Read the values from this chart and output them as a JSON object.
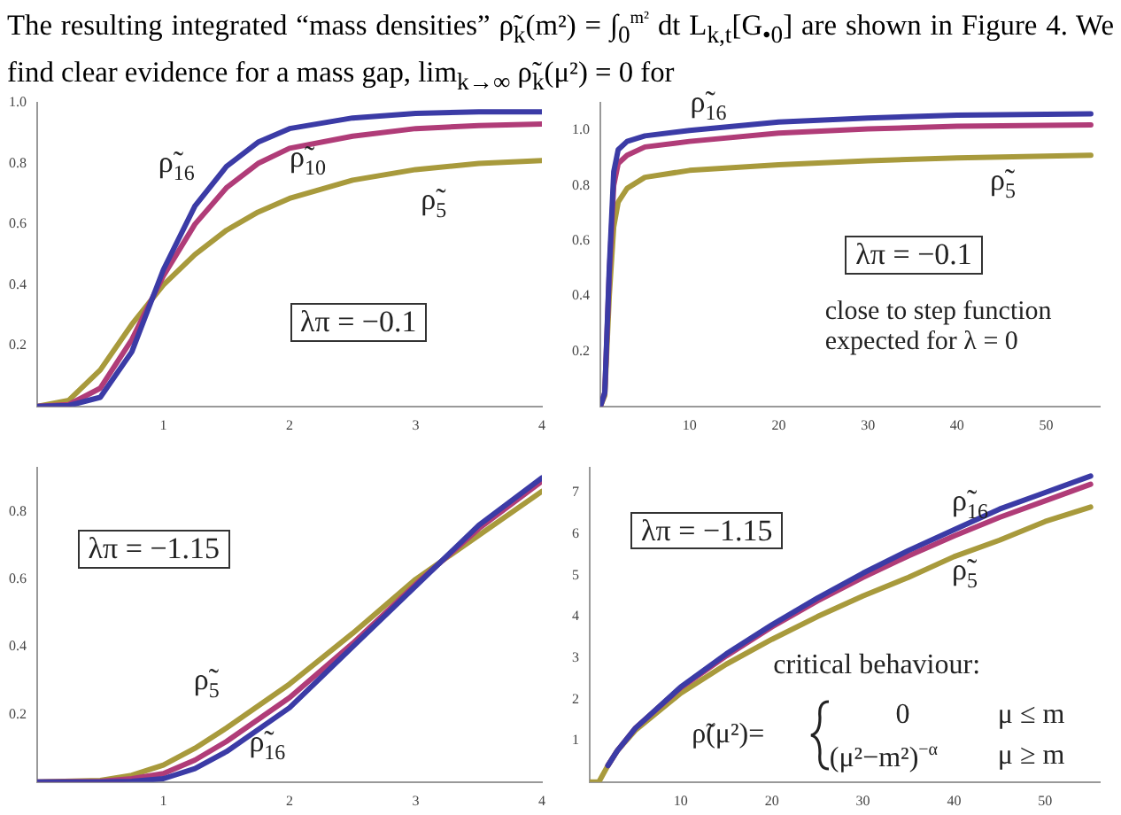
{
  "chart_data": [
    {
      "type": "line",
      "title": "The resulting integrated “mass densities” ρ̃$_{k}$(m²) = ∫$_{0}$$^{m²}$ dt L$_{k,t}$[G$_{•0}$] are shown in Figure 4.  We find clear evidence for a mass gap, lim$_{k→∞}$ ρ̃$_{k}$(μ²) = 0 for",
      "xlim": [
        0,
        4
      ],
      "ylim": [
        0,
        1
      ],
      "xticks": [
        1,
        2,
        3,
        4
      ],
      "yticks": [
        0.2,
        0.4,
        0.6,
        0.8,
        {
          "value": 1,
          "label": "1.0"
        }
      ],
      "grid": false,
      "marker": "none",
      "line_style": "solid",
      "annotations": [
        "λπ = −0.1"
      ],
      "x": [
        0,
        0.25,
        0.5,
        0.75,
        1,
        1.25,
        1.5,
        1.75,
        2,
        2.5,
        3,
        3.5,
        4
      ],
      "series": [
        {
          "name": "ρ̃$_{16}$",
          "color": "#3b3ba6",
          "values": [
            0,
            0.003,
            0.03,
            0.18,
            0.45,
            0.66,
            0.79,
            0.87,
            0.915,
            0.95,
            0.965,
            0.97,
            0.97
          ]
        },
        {
          "name": "ρ̃$_{10}$",
          "color": "#b03c78",
          "values": [
            0,
            0.006,
            0.06,
            0.22,
            0.43,
            0.6,
            0.72,
            0.8,
            0.85,
            0.89,
            0.915,
            0.925,
            0.93
          ]
        },
        {
          "name": "ρ̃$_{5}$",
          "color": "#a89a3c",
          "values": [
            0,
            0.02,
            0.12,
            0.27,
            0.4,
            0.5,
            0.58,
            0.64,
            0.685,
            0.745,
            0.78,
            0.8,
            0.81
          ]
        }
      ]
    },
    {
      "type": "line",
      "xlim": [
        0,
        56
      ],
      "ylim": [
        0,
        1.1
      ],
      "xticks": [
        10,
        20,
        30,
        40,
        50
      ],
      "yticks": [
        0.2,
        0.4,
        0.6,
        0.8,
        {
          "value": 1,
          "label": "1.0"
        }
      ],
      "grid": false,
      "marker": "none",
      "line_style": "solid",
      "annotations": [
        "λπ = −0.1",
        "close to step function\nexpected for λ = 0"
      ],
      "x": [
        0,
        0.5,
        1,
        1.5,
        2,
        3,
        5,
        10,
        20,
        30,
        40,
        55
      ],
      "series": [
        {
          "name": "ρ̃$_{16}$",
          "color": "#3b3ba6",
          "values": [
            0,
            0.05,
            0.5,
            0.85,
            0.93,
            0.96,
            0.98,
            1.0,
            1.03,
            1.045,
            1.055,
            1.06
          ]
        },
        {
          "color": "#b03c78",
          "values": [
            0,
            0.05,
            0.48,
            0.8,
            0.88,
            0.91,
            0.94,
            0.96,
            0.99,
            1.005,
            1.015,
            1.02
          ]
        },
        {
          "name": "ρ̃$_{5}$",
          "color": "#a89a3c",
          "values": [
            0,
            0.04,
            0.4,
            0.65,
            0.74,
            0.79,
            0.83,
            0.855,
            0.875,
            0.89,
            0.9,
            0.91
          ]
        }
      ]
    },
    {
      "type": "line",
      "xlim": [
        0,
        4
      ],
      "ylim": [
        0,
        0.93
      ],
      "xticks": [
        1,
        2,
        3,
        4
      ],
      "yticks": [
        0.2,
        0.4,
        0.6,
        0.8
      ],
      "grid": false,
      "marker": "none",
      "line_style": "solid",
      "annotations": [
        "λπ = −1.15"
      ],
      "x": [
        0,
        0.5,
        0.75,
        1,
        1.25,
        1.5,
        2,
        2.5,
        3,
        3.5,
        4
      ],
      "series": [
        {
          "name": "ρ̃$_{16}$",
          "color": "#3b3ba6",
          "values": [
            0,
            0,
            0.002,
            0.01,
            0.04,
            0.09,
            0.22,
            0.4,
            0.58,
            0.76,
            0.9
          ]
        },
        {
          "color": "#b03c78",
          "values": [
            0,
            0.002,
            0.01,
            0.025,
            0.065,
            0.12,
            0.25,
            0.41,
            0.585,
            0.75,
            0.89
          ]
        },
        {
          "name": "ρ̃$_{5}$",
          "color": "#a89a3c",
          "values": [
            0,
            0.005,
            0.02,
            0.05,
            0.1,
            0.16,
            0.29,
            0.44,
            0.6,
            0.73,
            0.86
          ]
        }
      ]
    },
    {
      "type": "line",
      "xlim": [
        0,
        56
      ],
      "ylim": [
        0,
        7.6
      ],
      "xticks": [
        10,
        20,
        30,
        40,
        50
      ],
      "yticks": [
        1,
        2,
        3,
        4,
        5,
        6,
        7
      ],
      "grid": false,
      "marker": "none",
      "line_style": "solid",
      "annotations": [
        "λπ = −1.15",
        "critical behaviour:",
        "ρ̃(μ²)=",
        "0",
        "μ ≤ m",
        "(μ²−m²)$^{−α}$",
        "μ ≥ m"
      ],
      "x": [
        0,
        1,
        2,
        3,
        5,
        10,
        15,
        20,
        25,
        30,
        35,
        40,
        45,
        50,
        55
      ],
      "series": [
        {
          "name": "ρ̃$_{16}$",
          "color": "#3b3ba6",
          "values": [
            null,
            null,
            0.4,
            0.75,
            1.3,
            2.3,
            3.1,
            3.8,
            4.45,
            5.05,
            5.6,
            6.1,
            6.6,
            7.0,
            7.4
          ]
        },
        {
          "color": "#b03c78",
          "values": [
            null,
            null,
            0.4,
            0.75,
            1.3,
            2.28,
            3.05,
            3.75,
            4.38,
            4.95,
            5.47,
            5.95,
            6.4,
            6.8,
            7.2
          ]
        },
        {
          "name": "ρ̃$_{5}$",
          "color": "#a89a3c",
          "values": [
            0,
            0,
            0.4,
            0.75,
            1.25,
            2.15,
            2.85,
            3.45,
            4.0,
            4.5,
            4.95,
            5.45,
            5.85,
            6.3,
            6.65
          ]
        }
      ]
    }
  ]
}
